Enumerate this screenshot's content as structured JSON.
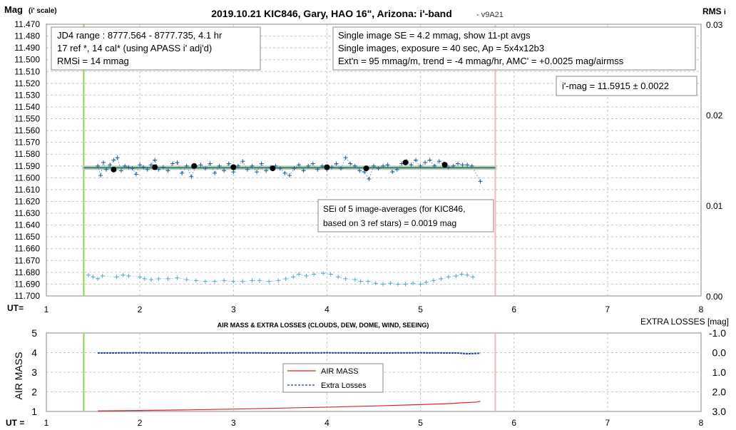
{
  "chart_data": [
    {
      "type": "scatter",
      "title": "2019.10.21 KIC846, Gary, HAO 16\", Arizona: i'-band",
      "version": "- v9A21",
      "ylabel": "Mag",
      "ylabel_sub": "(i' scale)",
      "y2label": "RMS",
      "y2label_sub": "i",
      "xlabel": "UT=",
      "ylim": [
        11.47,
        11.7
      ],
      "y_reversed": true,
      "xlim": [
        1,
        8
      ],
      "y2lim": [
        0.0,
        0.03
      ],
      "y_ticks": [
        "11.470",
        "11.480",
        "11.490",
        "11.500",
        "11.510",
        "11.520",
        "11.530",
        "11.540",
        "11.550",
        "11.560",
        "11.570",
        "11.580",
        "11.590",
        "11.600",
        "11.610",
        "11.620",
        "11.630",
        "11.640",
        "11.650",
        "11.660",
        "11.670",
        "11.680",
        "11.690",
        "11.700"
      ],
      "y2_ticks": [
        "0.00",
        "0.01",
        "0.02",
        "0.03"
      ],
      "x_ticks": [
        "1",
        "2",
        "3",
        "4",
        "5",
        "6",
        "7",
        "8"
      ],
      "grid": true,
      "vlines": [
        {
          "x": 1.4,
          "color": "#92d050"
        },
        {
          "x": 5.8,
          "color": "#f4b6b6"
        }
      ],
      "fit_line": {
        "x": [
          1.4,
          5.8
        ],
        "y": 11.5915,
        "color": "#2e8b57",
        "band_color": "#c8c8c8"
      },
      "series": [
        {
          "role": "single-images",
          "color": "#1f5f8b",
          "x": [
            1.55,
            1.58,
            1.61,
            1.64,
            1.68,
            1.72,
            1.76,
            1.8,
            1.84,
            1.88,
            1.92,
            1.96,
            2.0,
            2.04,
            2.08,
            2.12,
            2.16,
            2.2,
            2.25,
            2.3,
            2.35,
            2.4,
            2.45,
            2.5,
            2.55,
            2.6,
            2.65,
            2.7,
            2.75,
            2.8,
            2.85,
            2.9,
            2.95,
            3.0,
            3.05,
            3.1,
            3.15,
            3.2,
            3.25,
            3.3,
            3.35,
            3.4,
            3.45,
            3.5,
            3.55,
            3.6,
            3.65,
            3.7,
            3.75,
            3.8,
            3.85,
            3.9,
            3.95,
            4.0,
            4.05,
            4.1,
            4.15,
            4.2,
            4.25,
            4.3,
            4.35,
            4.4,
            4.45,
            4.5,
            4.55,
            4.6,
            4.65,
            4.7,
            4.75,
            4.8,
            4.85,
            4.9,
            4.95,
            5.0,
            5.05,
            5.1,
            5.15,
            5.2,
            5.25,
            5.3,
            5.35,
            5.4,
            5.45,
            5.5,
            5.55,
            5.64
          ],
          "y": [
            11.59,
            11.598,
            11.587,
            11.593,
            11.589,
            11.585,
            11.583,
            11.594,
            11.59,
            11.591,
            11.592,
            11.597,
            11.589,
            11.591,
            11.593,
            11.589,
            11.585,
            11.593,
            11.591,
            11.594,
            11.588,
            11.587,
            11.596,
            11.59,
            11.599,
            11.59,
            11.589,
            11.592,
            11.588,
            11.596,
            11.59,
            11.594,
            11.588,
            11.595,
            11.59,
            11.586,
            11.593,
            11.59,
            11.595,
            11.588,
            11.594,
            11.591,
            11.59,
            11.592,
            11.596,
            11.598,
            11.592,
            11.589,
            11.594,
            11.59,
            11.588,
            11.593,
            11.59,
            11.593,
            11.591,
            11.588,
            11.592,
            11.583,
            11.588,
            11.59,
            11.594,
            11.595,
            11.601,
            11.59,
            11.592,
            11.59,
            11.589,
            11.595,
            11.593,
            11.588,
            11.586,
            11.589,
            11.585,
            11.59,
            11.587,
            11.585,
            11.59,
            11.586,
            11.588,
            11.591,
            11.59,
            11.588,
            11.589,
            11.589,
            11.59,
            11.603
          ]
        },
        {
          "role": "11-pt averages",
          "color": "#000000",
          "x": [
            1.72,
            2.16,
            2.58,
            3.0,
            3.42,
            4.0,
            4.42,
            4.84,
            5.26
          ],
          "y": [
            11.593,
            11.591,
            11.59,
            11.591,
            11.592,
            11.591,
            11.592,
            11.587,
            11.589
          ]
        },
        {
          "role": "RMSi",
          "axis": "y2",
          "color": "#5aa6c9",
          "x": [
            1.45,
            1.5,
            1.55,
            1.6,
            1.75,
            1.82,
            1.88,
            2.0,
            2.05,
            2.12,
            2.2,
            2.3,
            2.4,
            2.5,
            2.6,
            2.7,
            2.8,
            2.9,
            3.0,
            3.1,
            3.2,
            3.28,
            3.38,
            3.48,
            3.56,
            3.64,
            3.7,
            3.78,
            3.86,
            3.96,
            4.04,
            4.12,
            4.2,
            4.3,
            4.36,
            4.44,
            4.52,
            4.6,
            4.68,
            4.76,
            4.84,
            4.92,
            5.0,
            5.06,
            5.14,
            5.22,
            5.3,
            5.38,
            5.44,
            5.5,
            5.56
          ],
          "y": [
            0.0023,
            0.0021,
            0.0019,
            0.0022,
            0.0021,
            0.0023,
            0.0022,
            0.0021,
            0.0019,
            0.0018,
            0.0019,
            0.0019,
            0.002,
            0.0018,
            0.0017,
            0.0016,
            0.0016,
            0.0017,
            0.0016,
            0.0016,
            0.0017,
            0.0017,
            0.0016,
            0.0017,
            0.0019,
            0.0021,
            0.0024,
            0.0022,
            0.0024,
            0.0025,
            0.0024,
            0.0021,
            0.0019,
            0.0018,
            0.0016,
            0.0016,
            0.0014,
            0.0013,
            0.0014,
            0.0013,
            0.0013,
            0.0014,
            0.0013,
            0.0015,
            0.0017,
            0.0019,
            0.0021,
            0.0022,
            0.0024,
            0.0023,
            0.0021
          ]
        }
      ],
      "annotations": {
        "box1": [
          "JD4 range : 8777.564 - 8777.735, 4.1  hr",
          "17 ref *, 14 cal* (using APASS i' adj'd)",
          "RMSi = 14 mmag"
        ],
        "box2": [
          "Single image SE = 4.2 mmag, show 11-pt avgs",
          "Single images, exposure = 40 sec, Ap = 5x4x12b3",
          "Ext'n = 95 mmag/m, trend = -4 mmag/hr, AMC' = +0.0025 mag/airmss"
        ],
        "box3": [
          "i'-mag = 11.5915 ± 0.0022"
        ],
        "box4": [
          "SEi of 5 image-averages (for KIC846,",
          "based on 3 ref stars) = 0.0019 mag"
        ]
      }
    },
    {
      "type": "line",
      "title": "AIR MASS & EXTRA LOSSES (CLOUDS, DEW, DOME, WIND, SEEING)",
      "ylabel": "AIR MASS",
      "y2label": "EXTRA LOSSES [mag]",
      "xlabel": "UT =",
      "ylim": [
        1,
        5
      ],
      "y2lim": [
        -1.0,
        3.0
      ],
      "y2_reversed": true,
      "xlim": [
        1,
        8
      ],
      "y_ticks": [
        "1",
        "2",
        "3",
        "4",
        "5"
      ],
      "y2_ticks": [
        "-1.0",
        "0.0",
        "1.0",
        "2.0",
        "3.0"
      ],
      "x_ticks": [
        "1",
        "2",
        "3",
        "4",
        "5",
        "6",
        "7",
        "8"
      ],
      "grid": true,
      "vlines": [
        {
          "x": 1.4,
          "color": "#92d050"
        },
        {
          "x": 5.8,
          "color": "#f4b6b6"
        }
      ],
      "legend": {
        "position": "center",
        "entries": [
          "AIR MASS",
          "Extra Losses"
        ]
      },
      "series": [
        {
          "name": "AIR MASS",
          "color": "#d62728",
          "axis": "y",
          "x": [
            1.55,
            2.0,
            2.5,
            3.0,
            3.5,
            4.0,
            4.5,
            5.0,
            5.3,
            5.6,
            5.64
          ],
          "y": [
            1.03,
            1.05,
            1.08,
            1.12,
            1.17,
            1.22,
            1.28,
            1.35,
            1.4,
            1.48,
            1.52
          ]
        },
        {
          "name": "Extra Losses",
          "color": "#1f3f9f",
          "axis": "y2",
          "x": [
            1.55,
            2.0,
            2.5,
            3.0,
            3.5,
            4.0,
            4.5,
            5.0,
            5.4,
            5.5,
            5.64
          ],
          "y": [
            0.02,
            0.01,
            0.02,
            0.01,
            0.02,
            0.01,
            0.02,
            0.01,
            0.02,
            0.06,
            0.03
          ]
        }
      ]
    }
  ]
}
